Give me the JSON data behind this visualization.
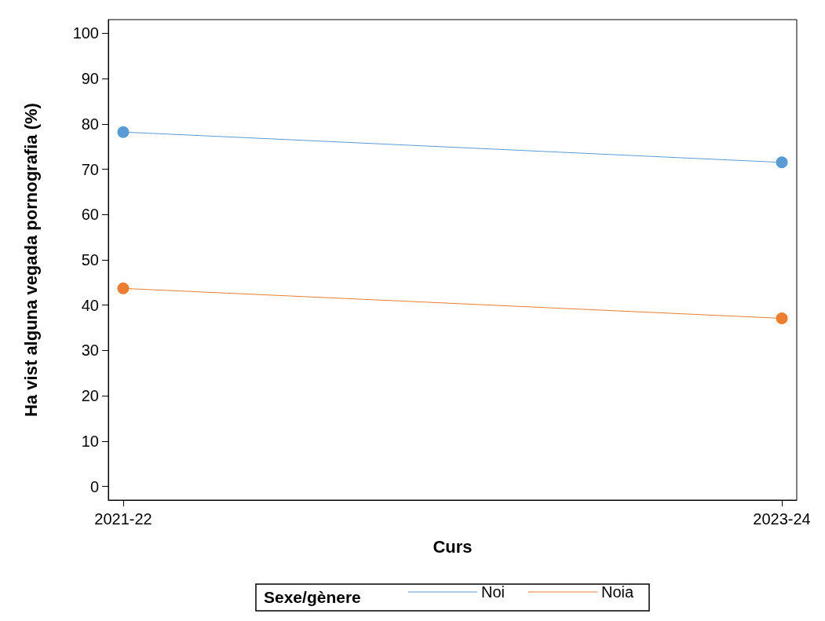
{
  "chart_data": {
    "type": "line",
    "xlabel": "Curs",
    "ylabel": "Ha vist alguna vegada pornografia (%)",
    "legend_title": "Sexe/gènere",
    "categories": [
      "2021-22",
      "2023-24"
    ],
    "series": [
      {
        "name": "Noi",
        "color": "#5b9bd5",
        "values": [
          78.2,
          71.5
        ]
      },
      {
        "name": "Noia",
        "color": "#ed7d31",
        "values": [
          43.7,
          37.1
        ]
      }
    ],
    "ylim": [
      -3,
      103
    ],
    "yticks": [
      0,
      10,
      20,
      30,
      40,
      50,
      60,
      70,
      80,
      90,
      100
    ],
    "marker": "circle",
    "line_style": "solid",
    "legend": "bottom",
    "grid": false
  }
}
